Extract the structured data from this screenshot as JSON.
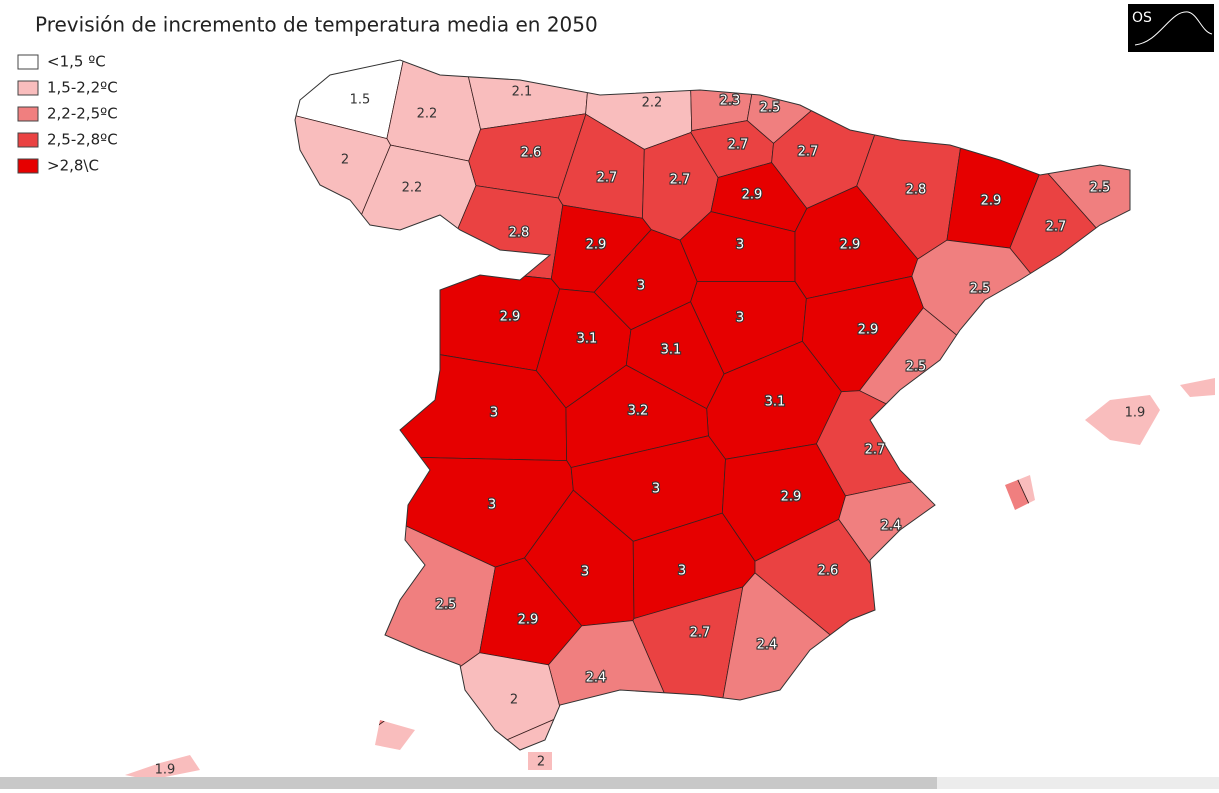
{
  "title": "Previsión de incremento de temperatura media en 2050",
  "logo": "OS",
  "legend": [
    {
      "label": "<1,5 ºC",
      "color": "#ffffff"
    },
    {
      "label": "1,5-2,2ºC",
      "color": "#f9bdbd"
    },
    {
      "label": "2,2-2,5ºC",
      "color": "#f07f7f"
    },
    {
      "label": "2,5-2,8ºC",
      "color": "#ea4242"
    },
    {
      "label": ">2,8\\C",
      "color": "#e60000"
    }
  ],
  "regions": [
    {
      "value": 1.5,
      "color": "#ffffff"
    },
    {
      "value": 2.2,
      "color": "#f9bdbd"
    },
    {
      "value": 2.1,
      "color": "#f9bdbd"
    },
    {
      "value": 2.2,
      "color": "#f9bdbd"
    },
    {
      "value": 2.3,
      "color": "#f07f7f"
    },
    {
      "value": 2.5,
      "color": "#f07f7f"
    },
    {
      "value": 2,
      "color": "#f9bdbd"
    },
    {
      "value": 2.2,
      "color": "#f9bdbd"
    },
    {
      "value": 2.6,
      "color": "#ea4242"
    },
    {
      "value": 2.7,
      "color": "#ea4242"
    },
    {
      "value": 2.7,
      "color": "#ea4242"
    },
    {
      "value": 2.7,
      "color": "#ea4242"
    },
    {
      "value": 2.7,
      "color": "#ea4242"
    },
    {
      "value": 2.9,
      "color": "#e60000"
    },
    {
      "value": 2.8,
      "color": "#ea4242"
    },
    {
      "value": 2.9,
      "color": "#e60000"
    },
    {
      "value": 2.5,
      "color": "#f07f7f"
    },
    {
      "value": 2.7,
      "color": "#ea4242"
    },
    {
      "value": 2.8,
      "color": "#ea4242"
    },
    {
      "value": 2.9,
      "color": "#e60000"
    },
    {
      "value": 3,
      "color": "#e60000"
    },
    {
      "value": 2.9,
      "color": "#e60000"
    },
    {
      "value": 2.5,
      "color": "#f07f7f"
    },
    {
      "value": 2.9,
      "color": "#e60000"
    },
    {
      "value": 3,
      "color": "#e60000"
    },
    {
      "value": 3,
      "color": "#e60000"
    },
    {
      "value": 3.1,
      "color": "#e60000"
    },
    {
      "value": 3.1,
      "color": "#e60000"
    },
    {
      "value": 2.9,
      "color": "#e60000"
    },
    {
      "value": 2.5,
      "color": "#f07f7f"
    },
    {
      "value": 3.1,
      "color": "#e60000"
    },
    {
      "value": 3,
      "color": "#e60000"
    },
    {
      "value": 3.2,
      "color": "#e60000"
    },
    {
      "value": 1.9,
      "color": "#f9bdbd"
    },
    {
      "value": 2.7,
      "color": "#ea4242"
    },
    {
      "value": 3,
      "color": "#e60000"
    },
    {
      "value": 3,
      "color": "#e60000"
    },
    {
      "value": 2.9,
      "color": "#e60000"
    },
    {
      "value": 2.4,
      "color": "#f07f7f"
    },
    {
      "value": 3,
      "color": "#e60000"
    },
    {
      "value": 3,
      "color": "#e60000"
    },
    {
      "value": 2.6,
      "color": "#ea4242"
    },
    {
      "value": 2.5,
      "color": "#f07f7f"
    },
    {
      "value": 2.9,
      "color": "#e60000"
    },
    {
      "value": 2.7,
      "color": "#ea4242"
    },
    {
      "value": 2.4,
      "color": "#f07f7f"
    },
    {
      "value": 2.4,
      "color": "#f07f7f"
    },
    {
      "value": 2,
      "color": "#f9bdbd"
    },
    {
      "value": 1.9,
      "color": "#f9bdbd"
    },
    {
      "value": 2,
      "color": "#f9bdbd"
    }
  ]
}
